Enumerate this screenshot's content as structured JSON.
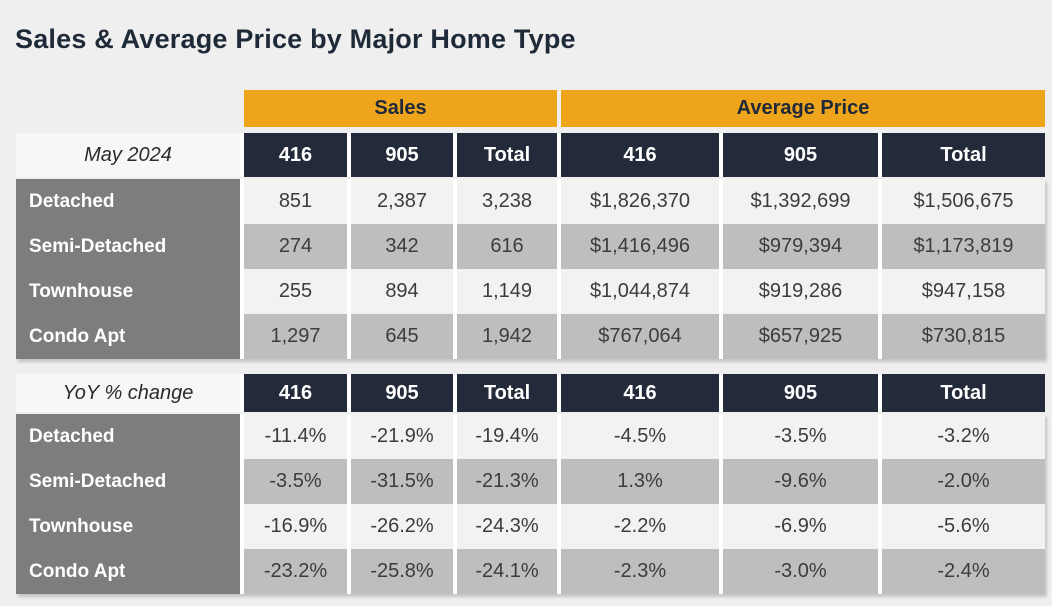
{
  "page": {
    "title": "Sales & Average Price by Major Home Type"
  },
  "colors": {
    "page_bg": "#efefef",
    "accent_gold": "#eea51c",
    "header_navy": "#232b3a",
    "row_label_gray": "#7c7d7f",
    "stripe_light": "#f2f2f1",
    "stripe_dark": "#bdbebf",
    "title_text": "#1f2a38"
  },
  "table": {
    "group_headers": {
      "sales": "Sales",
      "average_price": "Average Price"
    }
  },
  "chart_data": [
    {
      "type": "table",
      "title": "May 2024",
      "column_groups": [
        "Sales",
        "Average Price"
      ],
      "columns": [
        "416",
        "905",
        "Total",
        "416",
        "905",
        "Total"
      ],
      "rows": [
        {
          "label": "Detached",
          "cells": [
            "851",
            "2,387",
            "3,238",
            "$1,826,370",
            "$1,392,699",
            "$1,506,675"
          ]
        },
        {
          "label": "Semi-Detached",
          "cells": [
            "274",
            "342",
            "616",
            "$1,416,496",
            "$979,394",
            "$1,173,819"
          ]
        },
        {
          "label": "Townhouse",
          "cells": [
            "255",
            "894",
            "1,149",
            "$1,044,874",
            "$919,286",
            "$947,158"
          ]
        },
        {
          "label": "Condo Apt",
          "cells": [
            "1,297",
            "645",
            "1,942",
            "$767,064",
            "$657,925",
            "$730,815"
          ]
        }
      ]
    },
    {
      "type": "table",
      "title": "YoY % change",
      "column_groups": [
        "Sales",
        "Average Price"
      ],
      "columns": [
        "416",
        "905",
        "Total",
        "416",
        "905",
        "Total"
      ],
      "rows": [
        {
          "label": "Detached",
          "cells": [
            "-11.4%",
            "-21.9%",
            "-19.4%",
            "-4.5%",
            "-3.5%",
            "-3.2%"
          ]
        },
        {
          "label": "Semi-Detached",
          "cells": [
            "-3.5%",
            "-31.5%",
            "-21.3%",
            "1.3%",
            "-9.6%",
            "-2.0%"
          ]
        },
        {
          "label": "Townhouse",
          "cells": [
            "-16.9%",
            "-26.2%",
            "-24.3%",
            "-2.2%",
            "-6.9%",
            "-5.6%"
          ]
        },
        {
          "label": "Condo Apt",
          "cells": [
            "-23.2%",
            "-25.8%",
            "-24.1%",
            "-2.3%",
            "-3.0%",
            "-2.4%"
          ]
        }
      ]
    }
  ]
}
